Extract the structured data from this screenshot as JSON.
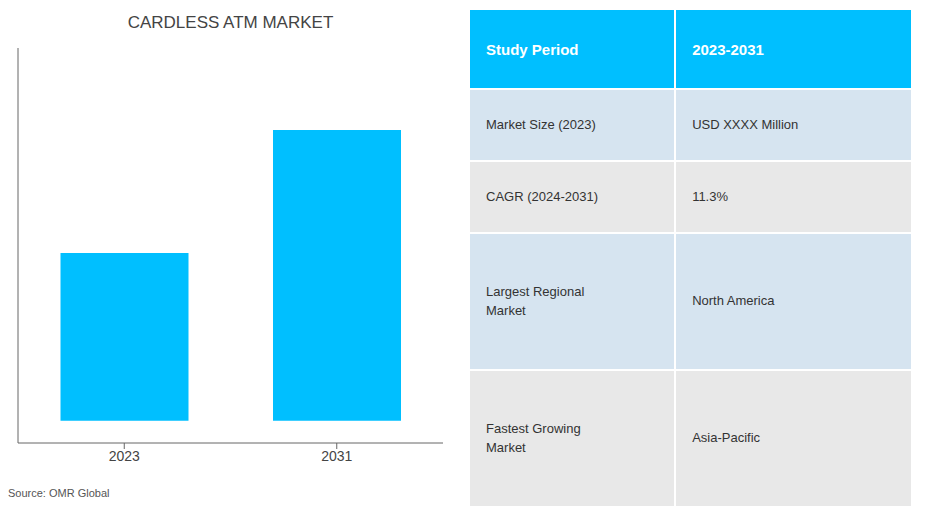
{
  "chart_data": {
    "type": "bar",
    "title": "CARDLESS ATM MARKET",
    "categories": [
      "2023",
      "2031"
    ],
    "values": [
      0.45,
      0.78
    ],
    "color": "#00BFFF",
    "ylim": [
      -0.06,
      1.0
    ],
    "tick_labels": "x",
    "grid": false,
    "annotations": [
      "Source: OMR Global"
    ],
    "table": {
      "header": [
        "Study Period",
        "2023-2031"
      ],
      "rows": [
        [
          "Market Size (2023)",
          "USD XXXX Million"
        ],
        [
          "CAGR (2024-2031)",
          "11.3%"
        ],
        [
          "Largest Regional\nMarket",
          "North America"
        ],
        [
          "Fastest Growing\nMarket",
          "Asia-Pacific"
        ]
      ],
      "colors": [
        "#00BFFF",
        "#d6e4f0",
        "#e8e8e8"
      ]
    }
  }
}
